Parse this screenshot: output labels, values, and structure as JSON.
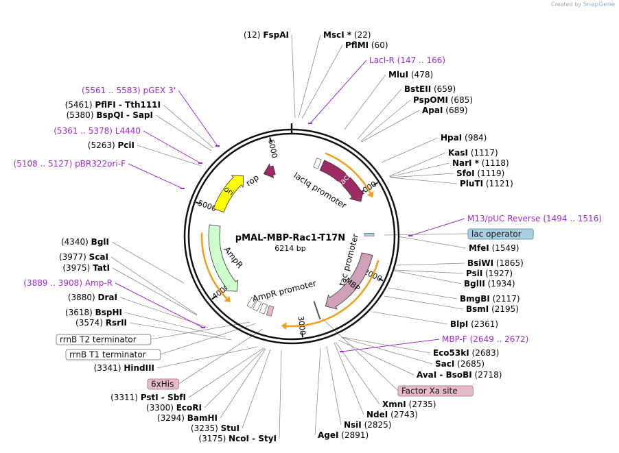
{
  "credit": {
    "prefix": "Created by",
    "brand": "SnapGene"
  },
  "plasmid": {
    "name": "pMAL-MBP-Rac1-T17N",
    "size": "6214 bp",
    "length": 6214
  },
  "ticks": [
    {
      "label": "1000",
      "bp": 1000
    },
    {
      "label": "2000",
      "bp": 2000
    },
    {
      "label": "3000",
      "bp": 3000
    },
    {
      "label": "4000",
      "bp": 4000
    },
    {
      "label": "5000",
      "bp": 5000
    },
    {
      "label": "6000",
      "bp": 6000
    }
  ],
  "colors": {
    "lacI": "#9c2a63",
    "rop": "#9c2a63",
    "MBP": "#d0a0b8",
    "ori": "#ffff00",
    "AmpR": "#ccffcc",
    "orange": "#f0a020",
    "primer": "#9b2ad6",
    "lac_operator_bg": "#a8cfe0",
    "pink_box_bg": "#e6bacb"
  },
  "features": [
    {
      "name": "lacI",
      "start": 400,
      "end": 1090,
      "dir": 1,
      "color": "#9c2a63",
      "label": "lacI",
      "labelColor": "#ffffff"
    },
    {
      "name": "MBP",
      "start": 1780,
      "end": 2660,
      "dir": 1,
      "color": "#d0a0b8",
      "label": "MBP",
      "labelColor": "#000000"
    },
    {
      "name": "AmpR",
      "start": 3880,
      "end": 4800,
      "dir": -1,
      "color": "#ccffcc",
      "label": "",
      "labelColor": "#000000"
    },
    {
      "name": "ori",
      "start": 5000,
      "end": 5550,
      "dir": 1,
      "color": "#ffff00",
      "label": "ori",
      "labelColor": "#000000"
    },
    {
      "name": "rop",
      "start": 5800,
      "end": 5960,
      "dir": -1,
      "color": "#9c2a63",
      "label": "",
      "labelColor": "#000000"
    }
  ],
  "feature_labels": [
    {
      "key": "rop",
      "text": "rop"
    },
    {
      "key": "AmpR",
      "text": "AmpR"
    },
    {
      "key": "lacIq",
      "text": "lacIq promoter"
    },
    {
      "key": "tac",
      "text": "tac promoter"
    },
    {
      "key": "AmpRp",
      "text": "AmpR promoter"
    }
  ],
  "enzymes": [
    {
      "name": "FspAI",
      "pos": "(12)",
      "side": "left"
    },
    {
      "name": "MscI *",
      "pos": "(22)",
      "side": "right"
    },
    {
      "name": "PflMI",
      "pos": "(60)",
      "side": "right"
    },
    {
      "name": "MluI",
      "pos": "(478)",
      "side": "right"
    },
    {
      "name": "BstEII",
      "pos": "(659)",
      "side": "right"
    },
    {
      "name": "PspOMI",
      "pos": "(685)",
      "side": "right"
    },
    {
      "name": "ApaI",
      "pos": "(689)",
      "side": "right"
    },
    {
      "name": "HpaI",
      "pos": "(984)",
      "side": "right"
    },
    {
      "name": "KasI",
      "pos": "(1117)",
      "side": "right"
    },
    {
      "name": "NarI *",
      "pos": "(1118)",
      "side": "right"
    },
    {
      "name": "SfoI",
      "pos": "(1119)",
      "side": "right"
    },
    {
      "name": "PluTI",
      "pos": "(1121)",
      "side": "right"
    },
    {
      "name": "MfeI",
      "pos": "(1549)",
      "side": "right"
    },
    {
      "name": "BsiWI",
      "pos": "(1865)",
      "side": "right"
    },
    {
      "name": "PsiI",
      "pos": "(1927)",
      "side": "right"
    },
    {
      "name": "BglII",
      "pos": "(1934)",
      "side": "right"
    },
    {
      "name": "BmgBI",
      "pos": "(2117)",
      "side": "right"
    },
    {
      "name": "BsmI",
      "pos": "(2195)",
      "side": "right"
    },
    {
      "name": "BlpI",
      "pos": "(2361)",
      "side": "right"
    },
    {
      "name": "Eco53kI",
      "pos": "(2683)",
      "side": "right"
    },
    {
      "name": "SacI",
      "pos": "(2685)",
      "side": "right"
    },
    {
      "name": "AvaI - BsoBI",
      "pos": "(2718)",
      "side": "right"
    },
    {
      "name": "XmnI",
      "pos": "(2735)",
      "side": "right"
    },
    {
      "name": "NdeI",
      "pos": "(2743)",
      "side": "right"
    },
    {
      "name": "NsiI",
      "pos": "(2825)",
      "side": "right"
    },
    {
      "name": "AgeI",
      "pos": "(2891)",
      "side": "right"
    },
    {
      "name": "NcoI - StyI",
      "pos": "(3175)",
      "side": "left"
    },
    {
      "name": "StuI",
      "pos": "(3235)",
      "side": "left"
    },
    {
      "name": "BamHI",
      "pos": "(3294)",
      "side": "left"
    },
    {
      "name": "EcoRI",
      "pos": "(3300)",
      "side": "left"
    },
    {
      "name": "PstI - SbfI",
      "pos": "(3311)",
      "side": "left"
    },
    {
      "name": "HindIII",
      "pos": "(3341)",
      "side": "left"
    },
    {
      "name": "RsrII",
      "pos": "(3574)",
      "side": "left"
    },
    {
      "name": "BspHI",
      "pos": "(3618)",
      "side": "left"
    },
    {
      "name": "DraI",
      "pos": "(3880)",
      "side": "left"
    },
    {
      "name": "TatI",
      "pos": "(3975)",
      "side": "left"
    },
    {
      "name": "ScaI",
      "pos": "(3977)",
      "side": "left"
    },
    {
      "name": "BglI",
      "pos": "(4340)",
      "side": "left"
    },
    {
      "name": "PciI",
      "pos": "(5263)",
      "side": "left"
    },
    {
      "name": "BspQI - SapI",
      "pos": "(5380)",
      "side": "left"
    },
    {
      "name": "PflFI - Tth111I",
      "pos": "(5461)",
      "side": "left"
    }
  ],
  "primers": [
    {
      "name": "LacI-R",
      "range": "(147 .. 166)",
      "side": "right"
    },
    {
      "name": "M13/pUC Reverse",
      "range": "(1494 .. 1516)",
      "side": "right"
    },
    {
      "name": "MBP-F",
      "range": "(2649 .. 2672)",
      "side": "right"
    },
    {
      "name": "Amp-R",
      "range": "(3889 .. 3908)",
      "side": "left"
    },
    {
      "name": "pBR322ori-F",
      "range": "(5108 .. 5127)",
      "side": "left"
    },
    {
      "name": "L4440",
      "range": "(5361 .. 5378)",
      "side": "left"
    },
    {
      "name": "pGEX 3'",
      "range": "(5561 .. 5583)",
      "side": "left"
    }
  ],
  "boxes": [
    {
      "name": "lac operator",
      "style": "blue"
    },
    {
      "name": "Factor Xa site",
      "style": "pink"
    },
    {
      "name": "6xHis",
      "style": "pink"
    },
    {
      "name": "rrnB T2 terminator",
      "style": "white"
    },
    {
      "name": "rrnB T1 terminator",
      "style": "white"
    }
  ]
}
